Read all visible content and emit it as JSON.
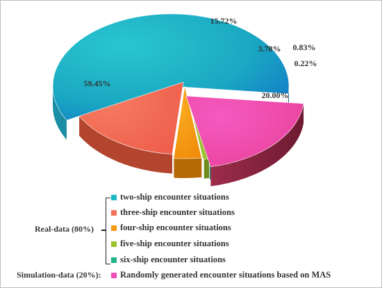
{
  "chart_data": {
    "type": "pie",
    "slices": [
      {
        "label": "two-ship encounter situations",
        "value": 59.45,
        "display": "59.45%",
        "color": "#1fb8c7"
      },
      {
        "label": "three-ship encounter situations",
        "value": 15.72,
        "display": "15.72%",
        "color": "#f2705a"
      },
      {
        "label": "four-ship encounter situations",
        "value": 3.78,
        "display": "3.78%",
        "color": "#f39a12"
      },
      {
        "label": "five-ship encounter situations",
        "value": 0.83,
        "display": "0.83%",
        "color": "#9bc32c"
      },
      {
        "label": "six-ship encounter situations",
        "value": 0.22,
        "display": "0.22%",
        "color": "#21b589"
      },
      {
        "label": "Randomly generated encounter situations based on MAS",
        "value": 20.0,
        "display": "20.00%",
        "color": "#f04fb7"
      }
    ]
  },
  "legend": {
    "real_group": "Real-data (80%)",
    "sim_group": "Simulation-data (20%):",
    "items": [
      "two-ship encounter situations",
      "three-ship encounter situations",
      "four-ship encounter situations",
      "five-ship encounter situations",
      "six-ship encounter situations",
      "Randomly generated encounter situations based on MAS"
    ]
  }
}
